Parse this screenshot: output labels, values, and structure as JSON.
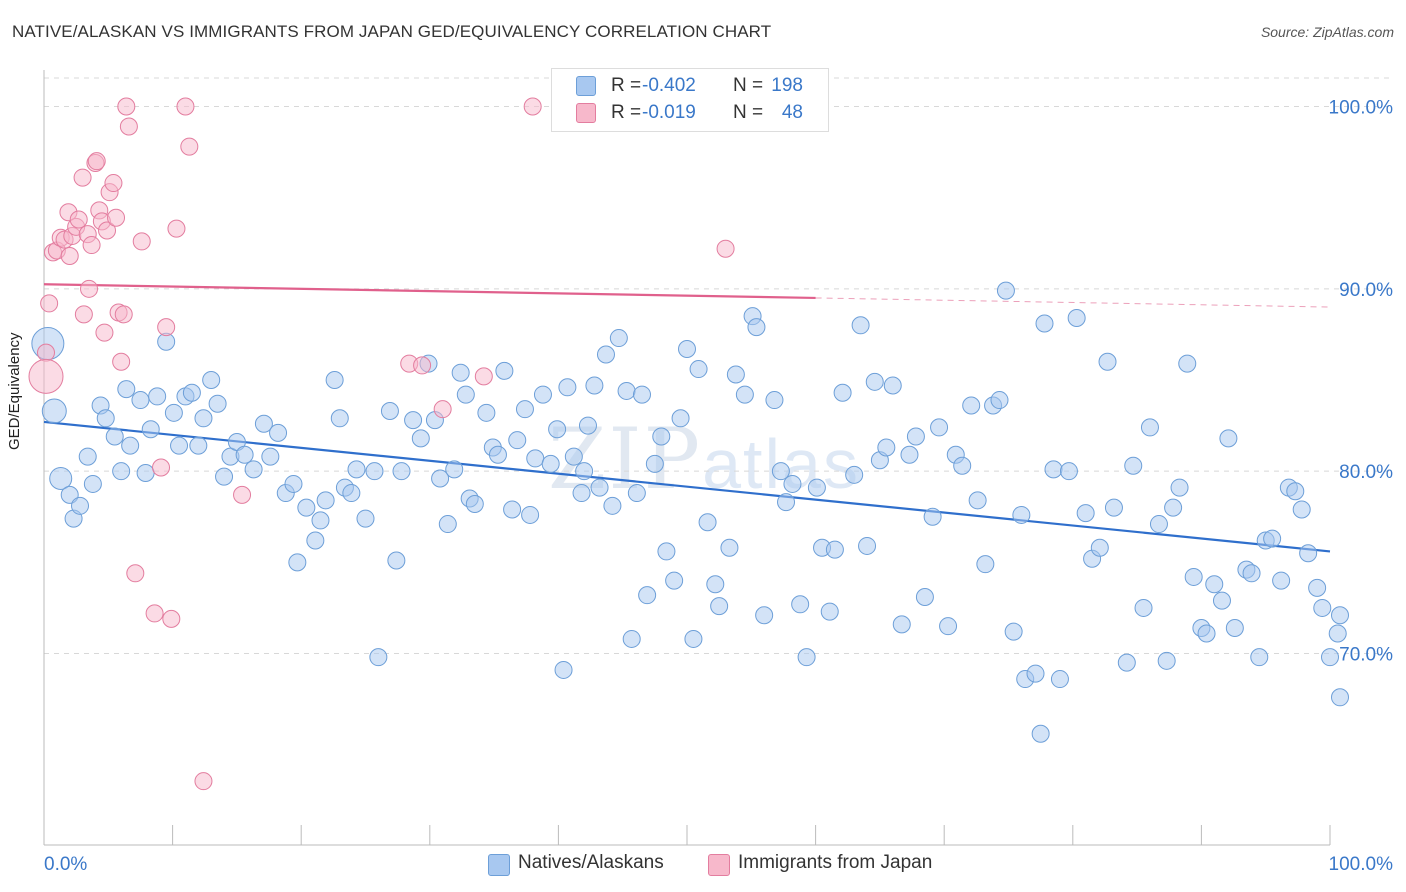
{
  "title": "NATIVE/ALASKAN VS IMMIGRANTS FROM JAPAN GED/EQUIVALENCY CORRELATION CHART",
  "source": "Source: ZipAtlas.com",
  "watermark": {
    "zip": "ZIP",
    "atlas": "atlas"
  },
  "legend": {
    "rows": [
      {
        "r_label": "R =",
        "r_value": "-0.402",
        "n_label": "N =",
        "n_value": "198",
        "color": "#a8c8f0"
      },
      {
        "r_label": "R =",
        "r_value": "-0.019",
        "n_label": "N =",
        "n_value": "48",
        "color": "#f7b8cb"
      }
    ]
  },
  "bottom_legend": [
    "Natives/Alaskans",
    "Immigrants from Japan"
  ],
  "chart_data": {
    "type": "scatter",
    "title": "NATIVE/ALASKAN VS IMMIGRANTS FROM JAPAN GED/EQUIVALENCY CORRELATION CHART",
    "xlabel": "",
    "ylabel": "GED/Equivalency",
    "xlim": [
      0,
      100
    ],
    "ylim": [
      59.5,
      102
    ],
    "x_tick_labels": [
      "0.0%",
      "100.0%"
    ],
    "y_ticks": [
      70,
      80,
      90,
      100
    ],
    "y_tick_labels": [
      "70.0%",
      "80.0%",
      "90.0%",
      "100.0%"
    ],
    "grid": true,
    "series": [
      {
        "name": "Natives/Alaskans",
        "color": "#a8c8f0",
        "edge": "#6d9fd8",
        "trend": {
          "x": [
            0,
            100
          ],
          "y": [
            82.7,
            75.6
          ],
          "color": "#2f6fcc"
        },
        "points": [
          [
            0.3,
            87.0
          ],
          [
            0.8,
            83.3
          ],
          [
            1.3,
            79.6
          ],
          [
            2.0,
            78.7
          ],
          [
            2.3,
            77.4
          ],
          [
            2.8,
            78.1
          ],
          [
            3.4,
            80.8
          ],
          [
            3.8,
            79.3
          ],
          [
            4.4,
            83.6
          ],
          [
            4.8,
            82.9
          ],
          [
            5.5,
            81.9
          ],
          [
            6.0,
            80.0
          ],
          [
            6.4,
            84.5
          ],
          [
            6.7,
            81.4
          ],
          [
            7.5,
            83.9
          ],
          [
            7.9,
            79.9
          ],
          [
            8.3,
            82.3
          ],
          [
            8.8,
            84.1
          ],
          [
            9.5,
            87.1
          ],
          [
            10.1,
            83.2
          ],
          [
            10.5,
            81.4
          ],
          [
            11.0,
            84.1
          ],
          [
            11.5,
            84.3
          ],
          [
            12.0,
            81.4
          ],
          [
            12.4,
            82.9
          ],
          [
            13.0,
            85.0
          ],
          [
            13.5,
            83.7
          ],
          [
            14.0,
            79.7
          ],
          [
            14.5,
            80.8
          ],
          [
            15.0,
            81.6
          ],
          [
            15.6,
            80.9
          ],
          [
            16.3,
            80.1
          ],
          [
            17.1,
            82.6
          ],
          [
            17.6,
            80.8
          ],
          [
            18.2,
            82.1
          ],
          [
            18.8,
            78.8
          ],
          [
            19.4,
            79.3
          ],
          [
            19.7,
            75.0
          ],
          [
            20.4,
            78.0
          ],
          [
            21.1,
            76.2
          ],
          [
            21.5,
            77.3
          ],
          [
            21.9,
            78.4
          ],
          [
            22.6,
            85.0
          ],
          [
            23.0,
            82.9
          ],
          [
            23.4,
            79.1
          ],
          [
            23.9,
            78.8
          ],
          [
            24.3,
            80.1
          ],
          [
            25.0,
            77.4
          ],
          [
            25.7,
            80.0
          ],
          [
            26.0,
            69.8
          ],
          [
            26.9,
            83.3
          ],
          [
            27.4,
            75.1
          ],
          [
            27.8,
            80.0
          ],
          [
            28.7,
            82.8
          ],
          [
            29.3,
            81.8
          ],
          [
            29.9,
            85.9
          ],
          [
            30.4,
            82.8
          ],
          [
            30.8,
            79.6
          ],
          [
            31.4,
            77.1
          ],
          [
            31.9,
            80.1
          ],
          [
            32.4,
            85.4
          ],
          [
            32.8,
            84.2
          ],
          [
            33.1,
            78.5
          ],
          [
            33.5,
            78.2
          ],
          [
            34.4,
            83.2
          ],
          [
            34.9,
            81.3
          ],
          [
            35.3,
            80.9
          ],
          [
            35.8,
            85.5
          ],
          [
            36.4,
            77.9
          ],
          [
            36.8,
            81.7
          ],
          [
            37.4,
            83.4
          ],
          [
            37.8,
            77.6
          ],
          [
            38.2,
            80.7
          ],
          [
            38.8,
            84.2
          ],
          [
            39.4,
            80.4
          ],
          [
            39.9,
            82.3
          ],
          [
            40.4,
            69.1
          ],
          [
            40.7,
            84.6
          ],
          [
            41.2,
            80.8
          ],
          [
            41.8,
            78.8
          ],
          [
            42.0,
            80.0
          ],
          [
            42.3,
            82.5
          ],
          [
            42.8,
            84.7
          ],
          [
            43.2,
            79.1
          ],
          [
            43.7,
            86.4
          ],
          [
            44.2,
            78.1
          ],
          [
            44.7,
            87.3
          ],
          [
            45.3,
            84.4
          ],
          [
            45.7,
            70.8
          ],
          [
            46.1,
            78.8
          ],
          [
            46.5,
            84.2
          ],
          [
            46.9,
            73.2
          ],
          [
            47.5,
            80.4
          ],
          [
            48.0,
            81.9
          ],
          [
            48.4,
            75.6
          ],
          [
            49.0,
            74.0
          ],
          [
            49.5,
            82.9
          ],
          [
            50.0,
            86.7
          ],
          [
            50.5,
            70.8
          ],
          [
            50.9,
            85.6
          ],
          [
            51.6,
            77.2
          ],
          [
            52.2,
            73.8
          ],
          [
            52.5,
            72.6
          ],
          [
            53.3,
            75.8
          ],
          [
            53.8,
            85.3
          ],
          [
            54.5,
            84.2
          ],
          [
            55.1,
            88.5
          ],
          [
            55.4,
            87.9
          ],
          [
            56.0,
            72.1
          ],
          [
            56.8,
            83.9
          ],
          [
            57.3,
            80.0
          ],
          [
            57.7,
            78.3
          ],
          [
            58.2,
            79.3
          ],
          [
            58.8,
            72.7
          ],
          [
            59.3,
            69.8
          ],
          [
            60.1,
            79.1
          ],
          [
            60.5,
            75.8
          ],
          [
            61.1,
            72.3
          ],
          [
            61.5,
            75.7
          ],
          [
            62.1,
            84.3
          ],
          [
            63.0,
            79.8
          ],
          [
            63.5,
            88.0
          ],
          [
            64.0,
            75.9
          ],
          [
            64.6,
            84.9
          ],
          [
            65.0,
            80.6
          ],
          [
            65.5,
            81.3
          ],
          [
            66.0,
            84.7
          ],
          [
            66.7,
            71.6
          ],
          [
            67.3,
            80.9
          ],
          [
            67.8,
            81.9
          ],
          [
            68.5,
            73.1
          ],
          [
            69.1,
            77.5
          ],
          [
            69.6,
            82.4
          ],
          [
            70.3,
            71.5
          ],
          [
            70.9,
            80.9
          ],
          [
            71.4,
            80.3
          ],
          [
            72.1,
            83.6
          ],
          [
            72.6,
            78.4
          ],
          [
            73.2,
            74.9
          ],
          [
            73.8,
            83.6
          ],
          [
            74.3,
            83.9
          ],
          [
            74.8,
            89.9
          ],
          [
            75.4,
            71.2
          ],
          [
            76.0,
            77.6
          ],
          [
            76.3,
            68.6
          ],
          [
            77.1,
            68.9
          ],
          [
            77.5,
            65.6
          ],
          [
            77.8,
            88.1
          ],
          [
            78.5,
            80.1
          ],
          [
            79.0,
            68.6
          ],
          [
            79.7,
            80.0
          ],
          [
            80.3,
            88.4
          ],
          [
            81.0,
            77.7
          ],
          [
            81.5,
            75.2
          ],
          [
            82.1,
            75.8
          ],
          [
            82.7,
            86.0
          ],
          [
            83.2,
            78.0
          ],
          [
            84.2,
            69.5
          ],
          [
            84.7,
            80.3
          ],
          [
            85.5,
            72.5
          ],
          [
            86.0,
            82.4
          ],
          [
            86.7,
            77.1
          ],
          [
            87.3,
            69.6
          ],
          [
            87.8,
            78.0
          ],
          [
            88.3,
            79.1
          ],
          [
            88.9,
            85.9
          ],
          [
            89.4,
            74.2
          ],
          [
            90.0,
            71.4
          ],
          [
            90.4,
            71.1
          ],
          [
            91.0,
            73.8
          ],
          [
            91.6,
            72.9
          ],
          [
            92.1,
            81.8
          ],
          [
            92.6,
            71.4
          ],
          [
            93.5,
            74.6
          ],
          [
            93.9,
            74.4
          ],
          [
            94.5,
            69.8
          ],
          [
            95.0,
            76.2
          ],
          [
            95.5,
            76.3
          ],
          [
            96.2,
            74.0
          ],
          [
            96.8,
            79.1
          ],
          [
            97.3,
            78.9
          ],
          [
            97.8,
            77.9
          ],
          [
            98.3,
            75.5
          ],
          [
            99.0,
            73.6
          ],
          [
            99.4,
            72.5
          ],
          [
            100.0,
            69.8
          ],
          [
            100.6,
            71.1
          ],
          [
            101.2,
            67.6
          ],
          [
            101.7,
            72.1
          ]
        ]
      },
      {
        "name": "Immigrants from Japan",
        "color": "#f7b8cb",
        "edge": "#e37d9f",
        "trend": {
          "x": [
            0,
            60
          ],
          "y": [
            90.25,
            89.5
          ],
          "dash_to_x": 100,
          "dash_to_y": 89.0,
          "color": "#e0608c"
        },
        "points": [
          [
            0.1,
            86.5
          ],
          [
            0.4,
            89.2
          ],
          [
            0.7,
            92.0
          ],
          [
            1.0,
            92.1
          ],
          [
            1.3,
            92.8
          ],
          [
            1.6,
            92.7
          ],
          [
            1.9,
            94.2
          ],
          [
            2.0,
            91.8
          ],
          [
            2.2,
            92.9
          ],
          [
            2.5,
            93.4
          ],
          [
            2.7,
            93.8
          ],
          [
            3.0,
            96.1
          ],
          [
            3.1,
            88.6
          ],
          [
            3.4,
            93.0
          ],
          [
            3.5,
            90.0
          ],
          [
            3.7,
            92.4
          ],
          [
            4.0,
            96.9
          ],
          [
            4.1,
            97.0
          ],
          [
            4.3,
            94.3
          ],
          [
            4.5,
            93.7
          ],
          [
            4.7,
            87.6
          ],
          [
            4.9,
            93.2
          ],
          [
            5.1,
            95.3
          ],
          [
            5.4,
            95.8
          ],
          [
            5.6,
            93.9
          ],
          [
            5.8,
            88.7
          ],
          [
            6.0,
            86.0
          ],
          [
            6.2,
            88.6
          ],
          [
            6.4,
            100.0
          ],
          [
            6.6,
            98.9
          ],
          [
            7.1,
            74.4
          ],
          [
            7.6,
            92.6
          ],
          [
            8.6,
            72.2
          ],
          [
            9.1,
            80.2
          ],
          [
            9.5,
            87.9
          ],
          [
            9.9,
            71.9
          ],
          [
            10.3,
            93.3
          ],
          [
            11.0,
            100.0
          ],
          [
            11.3,
            97.8
          ],
          [
            12.4,
            63.0
          ],
          [
            15.4,
            78.7
          ],
          [
            28.4,
            85.9
          ],
          [
            29.4,
            85.8
          ],
          [
            31.0,
            83.4
          ],
          [
            34.2,
            85.2
          ],
          [
            38.0,
            100.0
          ],
          [
            53.0,
            92.2
          ],
          [
            0.1,
            85.2
          ]
        ]
      }
    ]
  }
}
